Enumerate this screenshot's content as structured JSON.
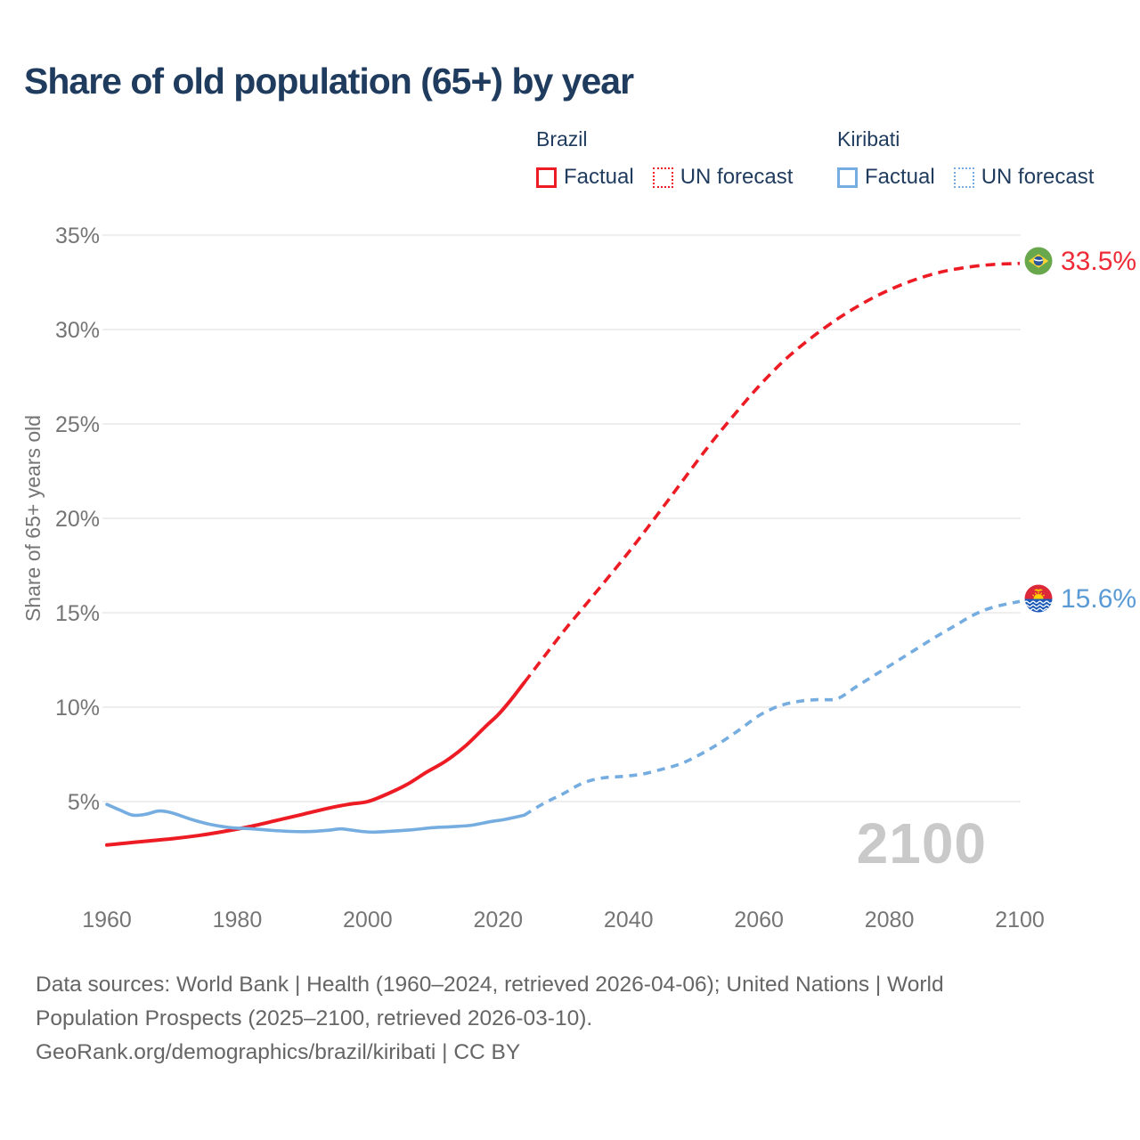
{
  "title": "Share of old population (65+) by year",
  "y_axis_title": "Share of 65+ years old",
  "watermark_year": "2100",
  "legend": {
    "brazil": {
      "header": "Brazil",
      "factual": "Factual",
      "forecast": "UN forecast"
    },
    "kiribati": {
      "header": "Kiribati",
      "factual": "Factual",
      "forecast": "UN forecast"
    }
  },
  "end_labels": {
    "brazil": "33.5%",
    "kiribati": "15.6%"
  },
  "colors": {
    "brazil_line": "#ed1c24",
    "kiribati_line": "#76ade0",
    "brazil_label": "#ee2b36",
    "kiribati_label": "#5b9bd5",
    "title_text": "#1f3b5e",
    "axis_text": "#757575",
    "gridline": "#e9e9e9",
    "watermark": "#c9c9c9",
    "footer_text": "#656565"
  },
  "chart_data": {
    "type": "line",
    "title": "Share of old population (65+) by year",
    "xlabel": "",
    "ylabel": "Share of 65+ years old",
    "xlim": [
      1960,
      2100
    ],
    "ylim_drawn": [
      2.5,
      35
    ],
    "grid": "horizontal-only",
    "legend_position": "top-right",
    "x_ticks": [
      {
        "label": "1960",
        "value": 1960
      },
      {
        "label": "1980",
        "value": 1980
      },
      {
        "label": "2000",
        "value": 2000
      },
      {
        "label": "2020",
        "value": 2020
      },
      {
        "label": "2040",
        "value": 2040
      },
      {
        "label": "2060",
        "value": 2060
      },
      {
        "label": "2080",
        "value": 2080
      },
      {
        "label": "2100",
        "value": 2100
      }
    ],
    "y_ticks": [
      {
        "label": "5%",
        "value": 5
      },
      {
        "label": "10%",
        "value": 10
      },
      {
        "label": "15%",
        "value": 15
      },
      {
        "label": "20%",
        "value": 20
      },
      {
        "label": "25%",
        "value": 25
      },
      {
        "label": "30%",
        "value": 30
      },
      {
        "label": "35%",
        "value": 35
      }
    ],
    "series": [
      {
        "name": "Brazil Factual",
        "color": "#ed1c24",
        "dash": "solid",
        "width": 4,
        "points": [
          [
            1960,
            2.7
          ],
          [
            1963,
            2.8
          ],
          [
            1966,
            2.9
          ],
          [
            1970,
            3.03
          ],
          [
            1974,
            3.2
          ],
          [
            1978,
            3.42
          ],
          [
            1982,
            3.68
          ],
          [
            1986,
            4.0
          ],
          [
            1990,
            4.32
          ],
          [
            1994,
            4.65
          ],
          [
            1997,
            4.85
          ],
          [
            2000,
            5.0
          ],
          [
            2003,
            5.4
          ],
          [
            2006,
            5.9
          ],
          [
            2009,
            6.55
          ],
          [
            2012,
            7.15
          ],
          [
            2015,
            7.95
          ],
          [
            2018,
            8.95
          ],
          [
            2020,
            9.6
          ],
          [
            2022,
            10.4
          ],
          [
            2024,
            11.3
          ]
        ]
      },
      {
        "name": "Brazil UN forecast",
        "color": "#ed1c24",
        "dash": "dashed",
        "width": 3.6,
        "points": [
          [
            2024,
            11.3
          ],
          [
            2027,
            12.65
          ],
          [
            2030,
            14.0
          ],
          [
            2033,
            15.25
          ],
          [
            2036,
            16.5
          ],
          [
            2040,
            18.2
          ],
          [
            2044,
            20.0
          ],
          [
            2048,
            21.85
          ],
          [
            2052,
            23.7
          ],
          [
            2056,
            25.4
          ],
          [
            2060,
            27.0
          ],
          [
            2064,
            28.4
          ],
          [
            2068,
            29.55
          ],
          [
            2072,
            30.55
          ],
          [
            2076,
            31.4
          ],
          [
            2080,
            32.1
          ],
          [
            2084,
            32.65
          ],
          [
            2088,
            33.05
          ],
          [
            2092,
            33.3
          ],
          [
            2096,
            33.45
          ],
          [
            2100,
            33.5
          ]
        ]
      },
      {
        "name": "Kiribati Factual",
        "color": "#76ade0",
        "dash": "solid",
        "width": 3.6,
        "points": [
          [
            1960,
            4.85
          ],
          [
            1962,
            4.55
          ],
          [
            1964,
            4.28
          ],
          [
            1966,
            4.33
          ],
          [
            1968,
            4.5
          ],
          [
            1970,
            4.4
          ],
          [
            1973,
            4.05
          ],
          [
            1976,
            3.78
          ],
          [
            1979,
            3.62
          ],
          [
            1982,
            3.56
          ],
          [
            1985,
            3.48
          ],
          [
            1988,
            3.42
          ],
          [
            1991,
            3.41
          ],
          [
            1994,
            3.48
          ],
          [
            1996,
            3.55
          ],
          [
            1999,
            3.42
          ],
          [
            2001,
            3.38
          ],
          [
            2004,
            3.44
          ],
          [
            2007,
            3.51
          ],
          [
            2010,
            3.62
          ],
          [
            2013,
            3.67
          ],
          [
            2016,
            3.75
          ],
          [
            2019,
            3.95
          ],
          [
            2021,
            4.05
          ],
          [
            2024,
            4.28
          ]
        ]
      },
      {
        "name": "Kiribati UN forecast",
        "color": "#76ade0",
        "dash": "dashed",
        "width": 3.6,
        "points": [
          [
            2024,
            4.28
          ],
          [
            2027,
            4.9
          ],
          [
            2030,
            5.42
          ],
          [
            2033,
            5.98
          ],
          [
            2036,
            6.25
          ],
          [
            2039,
            6.33
          ],
          [
            2042,
            6.45
          ],
          [
            2045,
            6.7
          ],
          [
            2048,
            7.0
          ],
          [
            2051,
            7.5
          ],
          [
            2054,
            8.1
          ],
          [
            2057,
            8.8
          ],
          [
            2060,
            9.55
          ],
          [
            2063,
            10.05
          ],
          [
            2066,
            10.3
          ],
          [
            2069,
            10.4
          ],
          [
            2072,
            10.45
          ],
          [
            2075,
            11.1
          ],
          [
            2078,
            11.75
          ],
          [
            2081,
            12.4
          ],
          [
            2084,
            13.05
          ],
          [
            2087,
            13.7
          ],
          [
            2090,
            14.3
          ],
          [
            2093,
            14.9
          ],
          [
            2096,
            15.3
          ],
          [
            2100,
            15.6
          ]
        ]
      }
    ],
    "end_markers": [
      {
        "series": "Brazil",
        "flag": "brazil",
        "value": 33.5,
        "label": "33.5%"
      },
      {
        "series": "Kiribati",
        "flag": "kiribati",
        "value": 15.6,
        "label": "15.6%"
      }
    ]
  },
  "footer": {
    "line1": "Data sources: World Bank | Health (1960–2024, retrieved 2026-04-06); United Nations | World",
    "line2": "Population Prospects (2025–2100, retrieved 2026-03-10).",
    "line3": "GeoRank.org/demographics/brazil/kiribati | CC BY"
  }
}
